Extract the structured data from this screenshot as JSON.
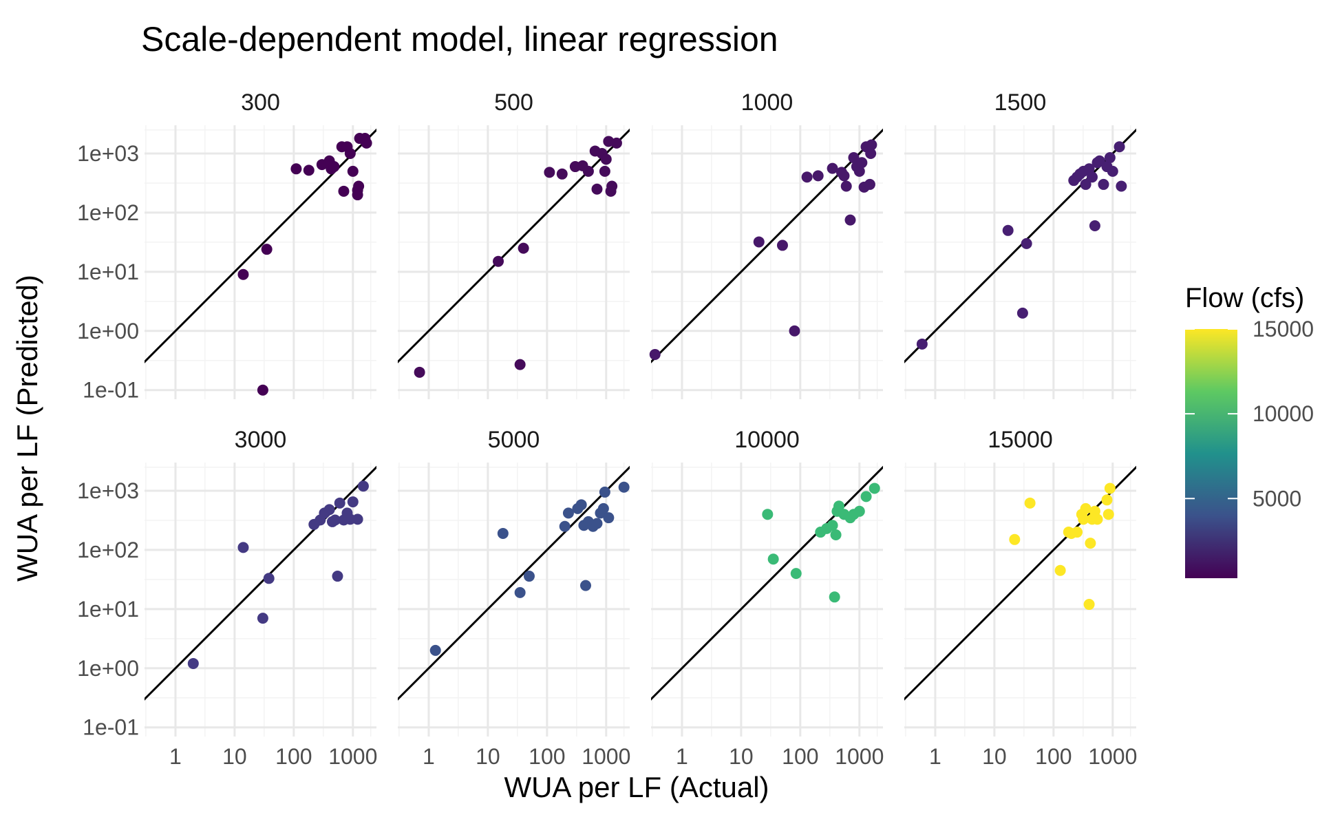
{
  "chart_data": {
    "type": "scatter",
    "title": "Scale-dependent model, linear regression",
    "xlabel": "WUA per LF (Actual)",
    "ylabel": "WUA per LF (Predicted)",
    "x_scale": "log10",
    "y_scale": "log10",
    "xlim": [
      0.3,
      2500
    ],
    "ylim": [
      0.07,
      3000
    ],
    "x_ticks": [
      1,
      10,
      100,
      1000
    ],
    "x_tick_labels": [
      "1",
      "10",
      "100",
      "1000"
    ],
    "y_ticks": [
      0.1,
      1,
      10,
      100,
      1000
    ],
    "y_tick_labels": [
      "1e-01",
      "1e+00",
      "1e+01",
      "1e+02",
      "1e+03"
    ],
    "reference_line": "y = x",
    "grid": true,
    "legend": {
      "title": "Flow (cfs)",
      "type": "colorbar",
      "placement": "right",
      "range": [
        300,
        15000
      ],
      "ticks": [
        5000,
        10000,
        15000
      ],
      "tick_labels": [
        "5000",
        "10000",
        "15000"
      ],
      "colors": [
        "#440154",
        "#3b528b",
        "#21918c",
        "#5ec962",
        "#fde725"
      ]
    },
    "panels": [
      {
        "flow": "300",
        "color": "#440154",
        "points": [
          [
            14,
            9
          ],
          [
            30,
            0.1
          ],
          [
            35,
            24
          ],
          [
            110,
            550
          ],
          [
            180,
            520
          ],
          [
            300,
            650
          ],
          [
            400,
            750
          ],
          [
            430,
            550
          ],
          [
            480,
            600
          ],
          [
            650,
            1300
          ],
          [
            700,
            230
          ],
          [
            800,
            1300
          ],
          [
            900,
            1000
          ],
          [
            1000,
            500
          ],
          [
            1200,
            240
          ],
          [
            1200,
            200
          ],
          [
            1250,
            280
          ],
          [
            1300,
            1800
          ],
          [
            1600,
            1800
          ],
          [
            1700,
            1500
          ]
        ]
      },
      {
        "flow": "500",
        "color": "#450b5a",
        "points": [
          [
            0.7,
            0.2
          ],
          [
            15,
            15
          ],
          [
            35,
            0.27
          ],
          [
            40,
            25
          ],
          [
            110,
            480
          ],
          [
            180,
            450
          ],
          [
            300,
            600
          ],
          [
            400,
            620
          ],
          [
            500,
            500
          ],
          [
            650,
            1100
          ],
          [
            700,
            250
          ],
          [
            850,
            1000
          ],
          [
            950,
            500
          ],
          [
            1000,
            800
          ],
          [
            1100,
            1600
          ],
          [
            1200,
            230
          ],
          [
            1250,
            280
          ],
          [
            1500,
            1500
          ]
        ]
      },
      {
        "flow": "1000",
        "color": "#47186a",
        "points": [
          [
            0.35,
            0.4
          ],
          [
            20,
            32
          ],
          [
            80,
            1.0
          ],
          [
            50,
            28
          ],
          [
            130,
            400
          ],
          [
            200,
            420
          ],
          [
            350,
            560
          ],
          [
            500,
            480
          ],
          [
            550,
            420
          ],
          [
            600,
            280
          ],
          [
            700,
            75
          ],
          [
            800,
            850
          ],
          [
            900,
            600
          ],
          [
            1000,
            500
          ],
          [
            1100,
            700
          ],
          [
            1200,
            270
          ],
          [
            1300,
            1300
          ],
          [
            1500,
            300
          ],
          [
            1550,
            1000
          ],
          [
            1600,
            1400
          ]
        ]
      },
      {
        "flow": "1500",
        "color": "#471f72",
        "points": [
          [
            0.6,
            0.6
          ],
          [
            17,
            50
          ],
          [
            30,
            2
          ],
          [
            35,
            30
          ],
          [
            220,
            350
          ],
          [
            250,
            400
          ],
          [
            280,
            450
          ],
          [
            320,
            500
          ],
          [
            350,
            300
          ],
          [
            400,
            550
          ],
          [
            450,
            400
          ],
          [
            500,
            60
          ],
          [
            550,
            700
          ],
          [
            600,
            750
          ],
          [
            700,
            300
          ],
          [
            800,
            600
          ],
          [
            900,
            850
          ],
          [
            1000,
            500
          ],
          [
            1300,
            1300
          ],
          [
            1400,
            280
          ]
        ]
      },
      {
        "flow": "3000",
        "color": "#443a83",
        "points": [
          [
            2,
            1.2
          ],
          [
            14,
            110
          ],
          [
            30,
            7
          ],
          [
            38,
            33
          ],
          [
            220,
            270
          ],
          [
            280,
            320
          ],
          [
            330,
            420
          ],
          [
            400,
            480
          ],
          [
            450,
            300
          ],
          [
            500,
            320
          ],
          [
            550,
            36
          ],
          [
            600,
            620
          ],
          [
            700,
            320
          ],
          [
            800,
            420
          ],
          [
            900,
            330
          ],
          [
            1000,
            650
          ],
          [
            1200,
            330
          ],
          [
            1500,
            1200
          ]
        ]
      },
      {
        "flow": "5000",
        "color": "#3b528b",
        "points": [
          [
            1.3,
            2
          ],
          [
            18,
            190
          ],
          [
            35,
            19
          ],
          [
            50,
            36
          ],
          [
            200,
            250
          ],
          [
            230,
            420
          ],
          [
            330,
            500
          ],
          [
            380,
            580
          ],
          [
            420,
            260
          ],
          [
            450,
            25
          ],
          [
            500,
            300
          ],
          [
            600,
            250
          ],
          [
            700,
            280
          ],
          [
            800,
            420
          ],
          [
            900,
            500
          ],
          [
            950,
            950
          ],
          [
            1100,
            350
          ],
          [
            2000,
            1150
          ]
        ]
      },
      {
        "flow": "10000",
        "color": "#3aba76",
        "points": [
          [
            28,
            400
          ],
          [
            35,
            70
          ],
          [
            85,
            40
          ],
          [
            220,
            200
          ],
          [
            280,
            230
          ],
          [
            350,
            260
          ],
          [
            380,
            16
          ],
          [
            400,
            180
          ],
          [
            420,
            450
          ],
          [
            450,
            550
          ],
          [
            550,
            400
          ],
          [
            700,
            350
          ],
          [
            800,
            400
          ],
          [
            1000,
            450
          ],
          [
            1300,
            800
          ],
          [
            1800,
            1100
          ]
        ]
      },
      {
        "flow": "15000",
        "color": "#fde725",
        "points": [
          [
            22,
            150
          ],
          [
            40,
            620
          ],
          [
            130,
            45
          ],
          [
            180,
            200
          ],
          [
            200,
            190
          ],
          [
            250,
            200
          ],
          [
            300,
            400
          ],
          [
            320,
            330
          ],
          [
            350,
            500
          ],
          [
            400,
            12
          ],
          [
            420,
            130
          ],
          [
            450,
            330
          ],
          [
            500,
            450
          ],
          [
            550,
            330
          ],
          [
            800,
            700
          ],
          [
            850,
            400
          ],
          [
            900,
            1100
          ]
        ]
      }
    ]
  }
}
